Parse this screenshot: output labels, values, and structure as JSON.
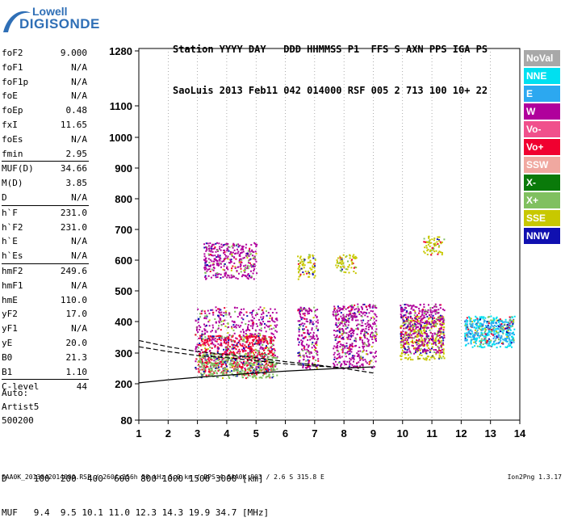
{
  "logo": {
    "top": "Lowell",
    "bottom": "DIGISONDE"
  },
  "header": {
    "line1": "Station YYYY DAY   DDD HHMMSS P1  FFS S AXN PPS IGA PS",
    "line2": "SaoLuis 2013 Feb11 042 014000 RSF 005 2 713 100 10+ 22"
  },
  "params": [
    {
      "label": "foF2",
      "value": "9.000"
    },
    {
      "label": "foF1",
      "value": "N/A"
    },
    {
      "label": "foF1p",
      "value": "N/A"
    },
    {
      "label": "foE",
      "value": "N/A"
    },
    {
      "label": "foEp",
      "value": "0.48"
    },
    {
      "label": "fxI",
      "value": "11.65"
    },
    {
      "label": "foEs",
      "value": "N/A"
    },
    {
      "label": "fmin",
      "value": "2.95"
    },
    {
      "label": "MUF(D)",
      "value": "34.66"
    },
    {
      "label": "M(D)",
      "value": "3.85"
    },
    {
      "label": "D",
      "value": "N/A"
    },
    {
      "label": "h`F",
      "value": "231.0"
    },
    {
      "label": "h`F2",
      "value": "231.0"
    },
    {
      "label": "h`E",
      "value": "N/A"
    },
    {
      "label": "h`Es",
      "value": "N/A"
    },
    {
      "label": "hmF2",
      "value": "249.6"
    },
    {
      "label": "hmF1",
      "value": "N/A"
    },
    {
      "label": "hmE",
      "value": "110.0"
    },
    {
      "label": "yF2",
      "value": "17.0"
    },
    {
      "label": "yF1",
      "value": "N/A"
    },
    {
      "label": "yE",
      "value": "20.0"
    },
    {
      "label": "B0",
      "value": "21.3"
    },
    {
      "label": "B1",
      "value": "1.10"
    },
    {
      "label": "C-level",
      "value": "44"
    }
  ],
  "auto": {
    "line1": "Auto:",
    "line2": "Artist5",
    "line3": "500200"
  },
  "d_line": "D     100  200  400  600  800 1000 1500 3000 [km]",
  "muf_line": "MUF   9.4  9.5 10.1 11.0 12.3 14.3 19.9 34.7 [MHz]",
  "footer": "SAA0K_2013042014000.RSF / 260fx256h 50 kHz 5.0 km / DPS-4 SAA0K 903 / 2.6 S 315.8 E",
  "version": "Ion2Png 1.3.17",
  "legend": [
    {
      "label": "NoVal",
      "color": "#a8a8a8"
    },
    {
      "label": "NNE",
      "color": "#00e0f0"
    },
    {
      "label": "E",
      "color": "#2ca8f0"
    },
    {
      "label": "W",
      "color": "#b0009c"
    },
    {
      "label": "Vo-",
      "color": "#f0508c"
    },
    {
      "label": "Vo+",
      "color": "#f00030"
    },
    {
      "label": "SSW",
      "color": "#f0a8a0"
    },
    {
      "label": "X-",
      "color": "#0a7a0a"
    },
    {
      "label": "X+",
      "color": "#80c060"
    },
    {
      "label": "SSE",
      "color": "#c8c800"
    },
    {
      "label": "NNW",
      "color": "#1010b0"
    }
  ],
  "chart_data": {
    "type": "scatter",
    "title": "",
    "xlabel": "",
    "ylabel": "",
    "x_ticks": [
      1,
      2,
      3,
      4,
      5,
      6,
      7,
      8,
      9,
      10,
      11,
      12,
      13,
      14
    ],
    "y_ticks": [
      80,
      200,
      300,
      400,
      500,
      600,
      700,
      800,
      900,
      1000,
      1100,
      1280
    ],
    "xlim": [
      1,
      14
    ],
    "ylim": [
      80,
      1280
    ],
    "y_scale": "nonlinear (ionogram virtual height scale)",
    "grid": "vertical dotted lines at each integer frequency",
    "clusters": [
      {
        "mode": "W",
        "x": [
          2.9,
          5.7
        ],
        "y": [
          250,
          450
        ]
      },
      {
        "mode": "Vo+",
        "x": [
          3.0,
          5.6
        ],
        "y": [
          230,
          360
        ]
      },
      {
        "mode": "X+",
        "x": [
          3.0,
          5.7
        ],
        "y": [
          220,
          300
        ]
      },
      {
        "mode": "W",
        "x": [
          3.2,
          5.0
        ],
        "y": [
          540,
          660
        ]
      },
      {
        "mode": "SSE",
        "x": [
          6.4,
          7.0
        ],
        "y": [
          540,
          620
        ]
      },
      {
        "mode": "W",
        "x": [
          6.4,
          7.1
        ],
        "y": [
          250,
          450
        ]
      },
      {
        "mode": "W",
        "x": [
          7.6,
          9.1
        ],
        "y": [
          250,
          460
        ]
      },
      {
        "mode": "SSE",
        "x": [
          7.7,
          8.4
        ],
        "y": [
          560,
          620
        ]
      },
      {
        "mode": "SSE",
        "x": [
          9.9,
          11.4
        ],
        "y": [
          280,
          420
        ]
      },
      {
        "mode": "W",
        "x": [
          9.9,
          11.4
        ],
        "y": [
          300,
          460
        ]
      },
      {
        "mode": "SSE",
        "x": [
          10.7,
          11.4
        ],
        "y": [
          620,
          680
        ]
      },
      {
        "mode": "NNE",
        "x": [
          12.1,
          13.8
        ],
        "y": [
          320,
          420
        ]
      },
      {
        "mode": "E",
        "x": [
          12.1,
          13.8
        ],
        "y": [
          330,
          410
        ]
      }
    ],
    "traces": [
      {
        "style": "solid",
        "points": [
          [
            1,
            203
          ],
          [
            2,
            213
          ],
          [
            3,
            221
          ],
          [
            4,
            228
          ],
          [
            5,
            235
          ],
          [
            6,
            241
          ],
          [
            7,
            246
          ],
          [
            8,
            251
          ],
          [
            9,
            255
          ]
        ]
      },
      {
        "style": "dashed",
        "points": [
          [
            1,
            340
          ],
          [
            2,
            320
          ],
          [
            3,
            305
          ],
          [
            4,
            295
          ],
          [
            5,
            285
          ],
          [
            6,
            272
          ],
          [
            7,
            262
          ],
          [
            8,
            250
          ],
          [
            9,
            235
          ]
        ]
      },
      {
        "style": "dashed",
        "points": [
          [
            1,
            320
          ],
          [
            2,
            305
          ],
          [
            3,
            292
          ],
          [
            4,
            285
          ],
          [
            5,
            275
          ],
          [
            6,
            265
          ],
          [
            7,
            258
          ],
          [
            8,
            252
          ]
        ]
      }
    ]
  }
}
